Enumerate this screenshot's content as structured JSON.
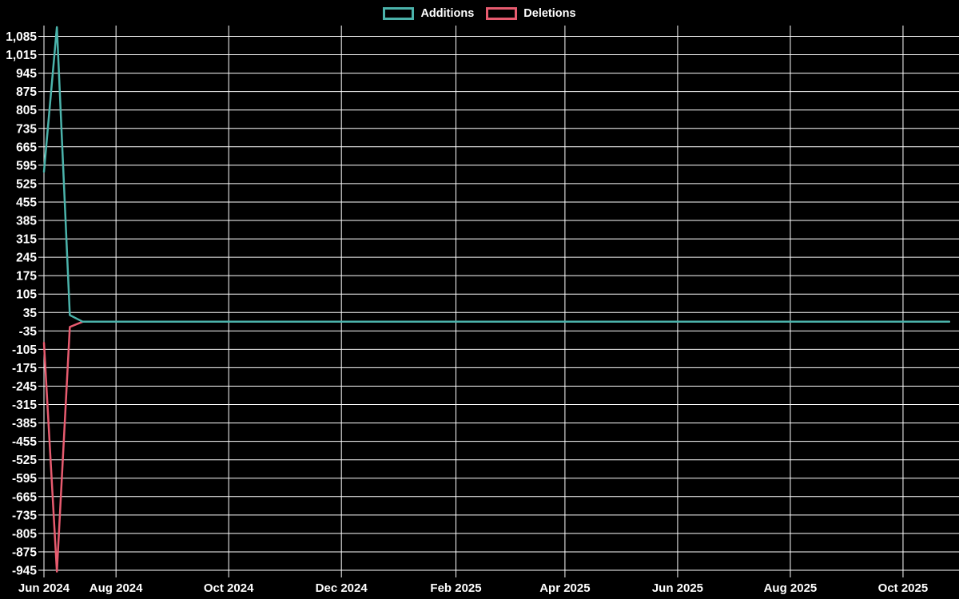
{
  "page": {
    "background": "#000000",
    "text_color": "#ffffff",
    "grid_color": "#ffffff"
  },
  "chart_data": {
    "type": "line",
    "legend": {
      "position": "top",
      "items": [
        "Additions",
        "Deletions"
      ]
    },
    "series": [
      {
        "name": "Additions",
        "color": "#4bb3ab",
        "points": [
          {
            "date": "2024-06-23",
            "value": 570
          },
          {
            "date": "2024-06-30",
            "value": 1120
          },
          {
            "date": "2024-07-07",
            "value": 25
          },
          {
            "date": "2024-07-14",
            "value": 0
          },
          {
            "date": "2025-10-26",
            "value": 0
          }
        ]
      },
      {
        "name": "Deletions",
        "color": "#e75b6f",
        "points": [
          {
            "date": "2024-06-23",
            "value": -80
          },
          {
            "date": "2024-06-30",
            "value": -950
          },
          {
            "date": "2024-07-07",
            "value": -20
          },
          {
            "date": "2024-07-14",
            "value": 0
          },
          {
            "date": "2025-10-26",
            "value": 0
          }
        ]
      }
    ],
    "x_axis": {
      "type": "time",
      "domain": [
        "2024-06-23",
        "2025-10-30"
      ],
      "ticks": [
        {
          "label": "Jun 2024",
          "date": "2024-06-23"
        },
        {
          "label": "Aug 2024",
          "date": "2024-08-01"
        },
        {
          "label": "Oct 2024",
          "date": "2024-10-01"
        },
        {
          "label": "Dec 2024",
          "date": "2024-12-01"
        },
        {
          "label": "Feb 2025",
          "date": "2025-02-01"
        },
        {
          "label": "Apr 2025",
          "date": "2025-04-01"
        },
        {
          "label": "Jun 2025",
          "date": "2025-06-01"
        },
        {
          "label": "Aug 2025",
          "date": "2025-08-01"
        },
        {
          "label": "Oct 2025",
          "date": "2025-10-01"
        }
      ]
    },
    "y_axis": {
      "min": -945,
      "max": 1085,
      "step": 70,
      "tick_labels": [
        "1,085",
        "1,015",
        "945",
        "875",
        "805",
        "735",
        "665",
        "595",
        "525",
        "455",
        "385",
        "315",
        "245",
        "175",
        "105",
        "35",
        "-35",
        "-105",
        "-175",
        "-245",
        "-315",
        "-385",
        "-455",
        "-525",
        "-595",
        "-665",
        "-735",
        "-805",
        "-875",
        "-945"
      ]
    },
    "grid": true
  }
}
